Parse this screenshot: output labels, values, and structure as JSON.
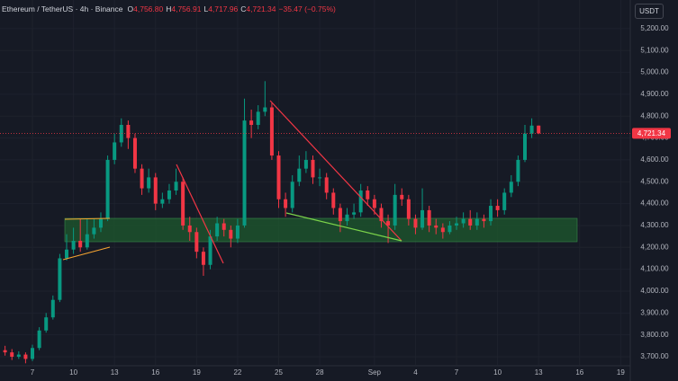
{
  "header": {
    "symbol": "Ethereum / TetherUS · 4h · Binance",
    "fields": [
      {
        "key": "O",
        "value": "4,756.80"
      },
      {
        "key": "H",
        "value": "4,756.91"
      },
      {
        "key": "L",
        "value": "4,717.96"
      },
      {
        "key": "C",
        "value": "4,721.34"
      }
    ],
    "change": "−35.47 (−0.75%)",
    "currency": "USDT"
  },
  "chart_data": {
    "type": "candlestick",
    "x": [
      5,
      5.5,
      6,
      6.5,
      7,
      7.5,
      8,
      8.5,
      9,
      9.5,
      10,
      10.5,
      11,
      11.5,
      12,
      12.5,
      13,
      13.5,
      14,
      14.5,
      15,
      15.5,
      16,
      16.5,
      17,
      17.5,
      18,
      18.5,
      19,
      19.5,
      20,
      20.5,
      21,
      21.5,
      22,
      22.5,
      23,
      23.5,
      24,
      24.5,
      25,
      25.5,
      26,
      26.5,
      27,
      27.5,
      28,
      28.5,
      29,
      29.5,
      30,
      30.5,
      31,
      31.5,
      32,
      32.5,
      33,
      33.5,
      34,
      34.5,
      35,
      35.5,
      36,
      36.5,
      37,
      37.5,
      38,
      38.5,
      39,
      39.5,
      40,
      40.5,
      41,
      41.5,
      42,
      42.5,
      43,
      43.5,
      44
    ],
    "open": [
      3730,
      3720,
      3700,
      3710,
      3690,
      3740,
      3820,
      3880,
      3960,
      4150,
      4190,
      4230,
      4200,
      4260,
      4290,
      4330,
      4600,
      4680,
      4760,
      4700,
      4560,
      4470,
      4520,
      4400,
      4420,
      4460,
      4500,
      4300,
      4270,
      4180,
      4120,
      4250,
      4310,
      4280,
      4240,
      4300,
      4780,
      4760,
      4820,
      4840,
      4620,
      4420,
      4380,
      4500,
      4560,
      4600,
      4520,
      4520,
      4450,
      4380,
      4320,
      4350,
      4360,
      4460,
      4420,
      4380,
      4320,
      4300,
      4440,
      4420,
      4330,
      4290,
      4370,
      4300,
      4290,
      4270,
      4300,
      4310,
      4330,
      4300,
      4330,
      4320,
      4390,
      4370,
      4450,
      4500,
      4600,
      4720,
      4756.8
    ],
    "high": [
      3750,
      3735,
      3725,
      3720,
      3755,
      3835,
      3900,
      3980,
      4170,
      4260,
      4290,
      4330,
      4330,
      4330,
      4360,
      4620,
      4720,
      4790,
      4780,
      4720,
      4580,
      4560,
      4540,
      4450,
      4490,
      4560,
      4520,
      4340,
      4290,
      4200,
      4280,
      4340,
      4330,
      4300,
      4330,
      4880,
      4830,
      4850,
      4960,
      4860,
      4640,
      4450,
      4530,
      4620,
      4640,
      4620,
      4560,
      4540,
      4470,
      4400,
      4380,
      4400,
      4490,
      4480,
      4440,
      4400,
      4350,
      4490,
      4470,
      4440,
      4350,
      4470,
      4390,
      4330,
      4310,
      4320,
      4340,
      4360,
      4370,
      4360,
      4350,
      4420,
      4420,
      4470,
      4530,
      4620,
      4760,
      4790,
      4756.91
    ],
    "low": [
      3705,
      3685,
      3690,
      3670,
      3680,
      3730,
      3810,
      3870,
      3950,
      4140,
      4170,
      4180,
      4190,
      4240,
      4270,
      4320,
      4580,
      4660,
      4650,
      4540,
      4440,
      4450,
      4370,
      4380,
      4400,
      4440,
      4280,
      4230,
      4150,
      4070,
      4100,
      4230,
      4250,
      4200,
      4220,
      4290,
      4700,
      4740,
      4800,
      4600,
      4380,
      4340,
      4360,
      4480,
      4540,
      4490,
      4480,
      4420,
      4350,
      4270,
      4300,
      4330,
      4340,
      4390,
      4350,
      4290,
      4220,
      4280,
      4390,
      4300,
      4260,
      4280,
      4270,
      4260,
      4240,
      4260,
      4280,
      4290,
      4280,
      4280,
      4290,
      4300,
      4340,
      4350,
      4430,
      4480,
      4590,
      4700,
      4717.96
    ],
    "close": [
      3720,
      3700,
      3710,
      3690,
      3740,
      3820,
      3880,
      3960,
      4150,
      4190,
      4230,
      4200,
      4260,
      4290,
      4330,
      4600,
      4680,
      4760,
      4700,
      4560,
      4470,
      4520,
      4400,
      4420,
      4460,
      4500,
      4300,
      4270,
      4180,
      4120,
      4250,
      4310,
      4280,
      4240,
      4300,
      4780,
      4760,
      4820,
      4840,
      4620,
      4420,
      4380,
      4500,
      4560,
      4600,
      4520,
      4520,
      4450,
      4380,
      4320,
      4350,
      4360,
      4460,
      4420,
      4380,
      4320,
      4300,
      4440,
      4420,
      4330,
      4290,
      4370,
      4300,
      4290,
      4270,
      4300,
      4310,
      4330,
      4300,
      4330,
      4320,
      4390,
      4370,
      4450,
      4500,
      4600,
      4720,
      4756.8,
      4721.34
    ],
    "up_color": "#089981",
    "down_color": "#f23645",
    "xlim": [
      4.63,
      50.7
    ],
    "xticks": [
      7,
      10,
      13,
      16,
      19,
      22,
      25,
      28,
      {
        "value": 32,
        "label": "Sep"
      },
      {
        "value": 35,
        "label": "4"
      },
      {
        "value": 38,
        "label": "7"
      },
      {
        "value": 41,
        "label": "10"
      },
      {
        "value": 44,
        "label": "13"
      },
      {
        "value": 47,
        "label": "16"
      },
      {
        "value": 50,
        "label": "19"
      }
    ],
    "ylim": [
      3663,
      5331
    ],
    "yticks": [
      {
        "value": 3700,
        "label": "3,700.00"
      },
      {
        "value": 3800,
        "label": "3,800.00"
      },
      {
        "value": 3900,
        "label": "3,900.00"
      },
      {
        "value": 4000,
        "label": "4,000.00"
      },
      {
        "value": 4100,
        "label": "4,100.00"
      },
      {
        "value": 4200,
        "label": "4,200.00"
      },
      {
        "value": 4300,
        "label": "4,300.00"
      },
      {
        "value": 4400,
        "label": "4,400.00"
      },
      {
        "value": 4500,
        "label": "4,500.00"
      },
      {
        "value": 4600,
        "label": "4,600.00"
      },
      {
        "value": 4700,
        "label": "4,700.00"
      },
      {
        "value": 4800,
        "label": "4,800.00"
      },
      {
        "value": 4900,
        "label": "4,900.00"
      },
      {
        "value": 5000,
        "label": "5,000.00"
      },
      {
        "value": 5100,
        "label": "5,100.00"
      },
      {
        "value": 5200,
        "label": "5,200.00"
      }
    ],
    "last_price": {
      "value": 4721.34,
      "label": "4,721.34"
    },
    "grid": true
  }
}
